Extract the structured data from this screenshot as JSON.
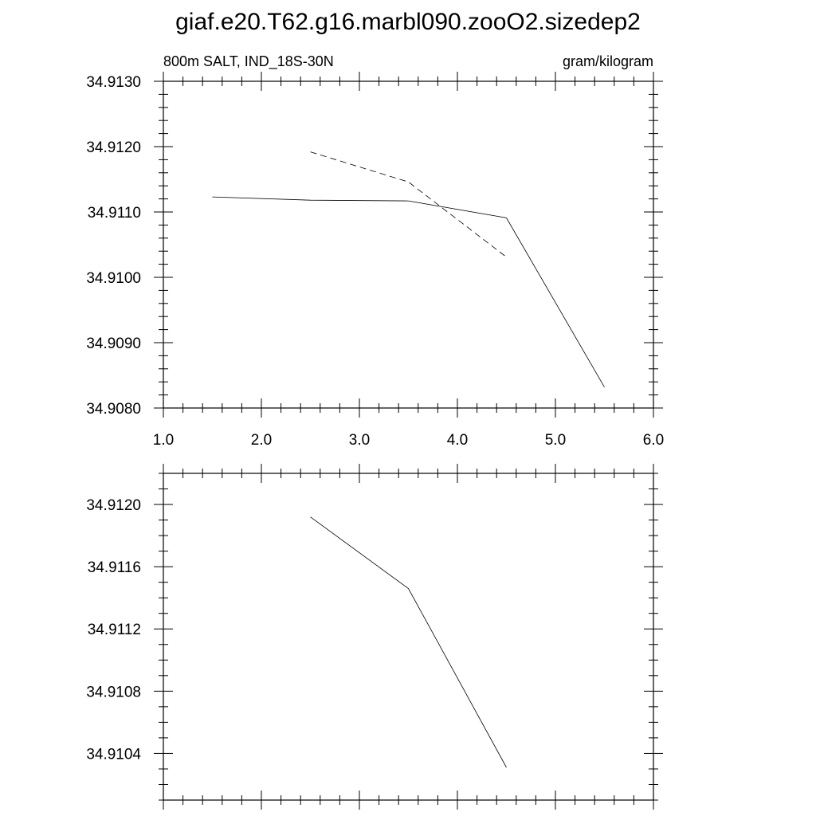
{
  "title": "giaf.e20.T62.g16.marbl090.zooO2.sizedep2",
  "chart_data": [
    {
      "type": "line",
      "left_subtitle": "800m SALT, IND_18S-30N",
      "right_subtitle": "gram/kilogram",
      "xlim": [
        1.0,
        6.0
      ],
      "ylim": [
        34.908,
        34.913
      ],
      "x_ticks": [
        "1.0",
        "2.0",
        "3.0",
        "4.0",
        "5.0",
        "6.0"
      ],
      "y_ticks": [
        "34.9130",
        "34.9120",
        "34.9110",
        "34.9100",
        "34.9090",
        "34.9080"
      ],
      "series": [
        {
          "style": "solid",
          "x": [
            1.5,
            2.5,
            3.5,
            4.5,
            5.5
          ],
          "values": [
            34.91123,
            34.91118,
            34.91117,
            34.91091,
            34.90832
          ]
        },
        {
          "style": "dashed",
          "x": [
            2.5,
            3.5,
            4.5
          ],
          "values": [
            34.91192,
            34.91146,
            34.91031
          ]
        }
      ]
    },
    {
      "type": "line",
      "xlim": [
        1.0,
        6.0
      ],
      "ylim": [
        34.9101,
        34.9122
      ],
      "y_ticks": [
        "34.9120",
        "34.9116",
        "34.9112",
        "34.9108",
        "34.9104"
      ],
      "series": [
        {
          "style": "solid",
          "x": [
            2.5,
            3.5,
            4.5
          ],
          "values": [
            34.91192,
            34.91146,
            34.91031
          ]
        }
      ]
    }
  ]
}
